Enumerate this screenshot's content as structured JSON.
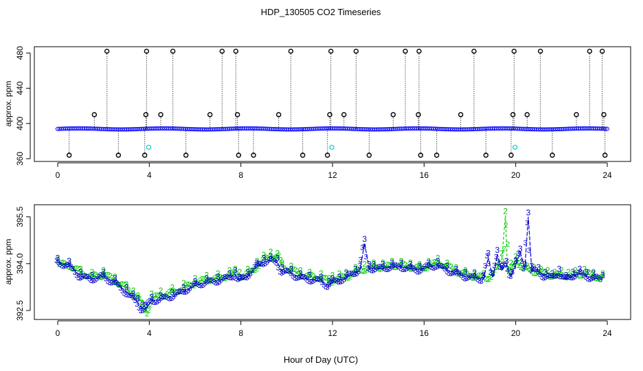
{
  "title": "HDP_130505  CO2 Timeseries",
  "xlabel": "Hour of Day (UTC)",
  "colors": {
    "outlier_marker": "#000000",
    "baseline_marker": "#0000ff",
    "cyan_marker": "#00cccc",
    "series_2": "#00cc00",
    "series_3": "#0000cc"
  },
  "chart_data": [
    {
      "type": "scatter",
      "panel": "top",
      "ylabel": "approx. ppm",
      "xlim": [
        0,
        24
      ],
      "ylim": [
        360,
        484
      ],
      "x_ticks": [
        "0",
        "4",
        "8",
        "12",
        "16",
        "20",
        "24"
      ],
      "y_ticks": [
        "360",
        "400",
        "440",
        "480"
      ],
      "grid": false,
      "baseline_ppm": 393.8,
      "spike_high_hours": [
        2.15,
        3.88,
        5.03,
        7.18,
        7.78,
        10.18,
        11.93,
        13.03,
        15.18,
        15.78,
        18.18,
        19.93,
        21.08,
        23.23,
        23.78
      ],
      "spike_high_ppm": 482,
      "spike_mid_hours": [
        1.6,
        3.85,
        4.5,
        6.65,
        7.85,
        9.65,
        11.88,
        12.5,
        14.65,
        15.75,
        17.6,
        19.88,
        20.5,
        22.65,
        23.85
      ],
      "spike_mid_ppm": 410,
      "spike_low_hours": [
        0.5,
        2.65,
        3.8,
        5.6,
        7.9,
        8.55,
        10.7,
        11.78,
        13.6,
        15.85,
        16.55,
        18.7,
        19.8,
        21.6,
        23.9
      ],
      "spike_low_ppm": 364,
      "cyan_points": [
        {
          "x": 3.97,
          "y": 373
        },
        {
          "x": 11.97,
          "y": 373
        },
        {
          "x": 19.97,
          "y": 373
        }
      ]
    },
    {
      "type": "line",
      "panel": "bottom",
      "ylabel": "approx. ppm",
      "xlim": [
        0,
        24
      ],
      "ylim": [
        392.3,
        395.8
      ],
      "x_ticks": [
        "0",
        "4",
        "8",
        "12",
        "16",
        "20",
        "24"
      ],
      "y_ticks": [
        "392.5",
        "394.0",
        "395.5"
      ],
      "grid": false,
      "series": [
        {
          "name": "2",
          "x": [
            0,
            0.5,
            1,
            1.5,
            2,
            2.5,
            3,
            3.3,
            3.5,
            3.7,
            3.85,
            4.1,
            4.5,
            5,
            5.5,
            6,
            6.5,
            7,
            7.5,
            7.75,
            7.95,
            8.3,
            8.7,
            9.0,
            9.3,
            9.6,
            9.8,
            10.2,
            10.6,
            11,
            11.5,
            11.85,
            12.0,
            12.3,
            12.6,
            13,
            13.4,
            13.8,
            14.2,
            14.6,
            15,
            15.4,
            15.8,
            16.2,
            16.6,
            17,
            17.4,
            17.8,
            18.2,
            18.6,
            18.9,
            19.2,
            19.4,
            19.55,
            19.65,
            19.8,
            20.0,
            20.2,
            20.5,
            20.8,
            21.1,
            21.4,
            21.7,
            22.0,
            22.3,
            22.6,
            23.0,
            23.4,
            23.8
          ],
          "y": [
            394.0,
            393.95,
            393.7,
            393.6,
            393.65,
            393.45,
            393.2,
            393.0,
            392.85,
            392.6,
            392.45,
            392.9,
            393.0,
            393.1,
            393.25,
            393.4,
            393.5,
            393.55,
            393.65,
            393.7,
            393.6,
            393.7,
            393.95,
            394.15,
            394.25,
            394.2,
            393.9,
            393.8,
            393.65,
            393.6,
            393.55,
            393.4,
            393.5,
            393.55,
            393.6,
            393.75,
            393.85,
            393.9,
            393.9,
            393.95,
            393.95,
            393.9,
            393.85,
            393.95,
            394.05,
            393.9,
            393.75,
            393.65,
            393.6,
            393.55,
            393.6,
            393.9,
            394.2,
            395.55,
            393.7,
            393.9,
            394.1,
            393.9,
            393.8,
            393.75,
            393.7,
            393.65,
            393.6,
            393.65,
            393.6,
            393.65,
            393.7,
            393.6,
            393.55
          ]
        },
        {
          "name": "3",
          "x": [
            0,
            0.5,
            1,
            1.5,
            2,
            2.5,
            3,
            3.3,
            3.5,
            3.7,
            3.85,
            4.1,
            4.5,
            5,
            5.5,
            6,
            6.5,
            7,
            7.5,
            7.75,
            7.95,
            8.3,
            8.7,
            9.0,
            9.3,
            9.6,
            9.8,
            10.2,
            10.6,
            11,
            11.5,
            11.85,
            12.0,
            12.3,
            12.6,
            13,
            13.2,
            13.4,
            13.6,
            13.8,
            14.2,
            14.6,
            15,
            15.4,
            15.8,
            16.2,
            16.6,
            17,
            17.4,
            17.8,
            18.2,
            18.6,
            18.8,
            19.0,
            19.2,
            19.4,
            19.6,
            19.8,
            20.0,
            20.2,
            20.4,
            20.55,
            20.7,
            21.0,
            21.3,
            21.6,
            21.9,
            22.2,
            22.5,
            22.8,
            23.1,
            23.4,
            23.8
          ],
          "y": [
            394.05,
            393.95,
            393.6,
            393.5,
            393.6,
            393.4,
            393.1,
            392.9,
            392.75,
            392.55,
            392.55,
            392.8,
            392.85,
            392.95,
            393.1,
            393.3,
            393.4,
            393.45,
            393.55,
            393.65,
            393.45,
            393.6,
            393.9,
            394.05,
            394.1,
            394.05,
            393.75,
            393.7,
            393.55,
            393.5,
            393.45,
            393.3,
            393.4,
            393.45,
            393.55,
            393.7,
            393.8,
            394.65,
            393.85,
            393.85,
            393.85,
            393.9,
            393.9,
            393.85,
            393.8,
            393.9,
            393.95,
            393.8,
            393.7,
            393.6,
            393.55,
            393.5,
            394.2,
            393.55,
            394.3,
            393.8,
            393.95,
            393.6,
            393.95,
            394.35,
            393.85,
            395.5,
            393.8,
            393.75,
            393.6,
            393.55,
            393.7,
            393.5,
            393.6,
            393.7,
            393.6,
            393.55,
            393.5
          ]
        }
      ]
    }
  ]
}
